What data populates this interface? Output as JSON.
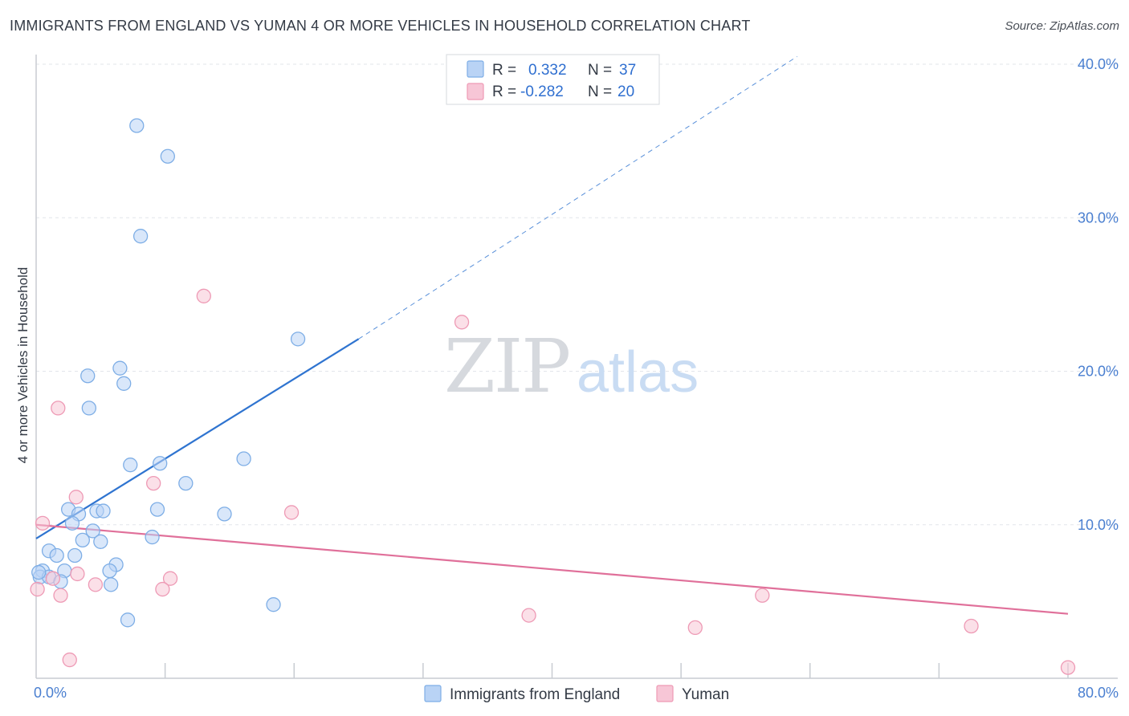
{
  "title": "IMMIGRANTS FROM ENGLAND VS YUMAN 4 OR MORE VEHICLES IN HOUSEHOLD CORRELATION CHART",
  "source": "Source: ZipAtlas.com",
  "watermark": {
    "zip": "ZIP",
    "atlas": "atlas"
  },
  "colors": {
    "blue_fill": "#b9d3f5",
    "blue_stroke": "#7eaee6",
    "blue_line": "#2f74d0",
    "pink_fill": "#f7c6d6",
    "pink_stroke": "#ee9ab5",
    "pink_line": "#e0709a",
    "grid": "#e2e5ea",
    "axis": "#c8ccd2",
    "tick_text": "#4a7fd0"
  },
  "legend": {
    "rows": [
      {
        "r_label": "R =",
        "r_value": "0.332",
        "n_label": "N =",
        "n_value": "37",
        "series": "blue"
      },
      {
        "r_label": "R =",
        "r_value": "-0.282",
        "n_label": "N =",
        "n_value": "20",
        "series": "pink"
      }
    ]
  },
  "chart_data": {
    "type": "scatter",
    "title": "IMMIGRANTS FROM ENGLAND VS YUMAN 4 OR MORE VEHICLES IN HOUSEHOLD CORRELATION CHART",
    "xlabel": "",
    "ylabel": "4 or more Vehicles in Household",
    "xlim": [
      0,
      80
    ],
    "ylim": [
      0,
      40
    ],
    "x_tick_labels": [
      "0.0%",
      "80.0%"
    ],
    "y_ticks": [
      10,
      20,
      30,
      40
    ],
    "y_tick_labels": [
      "10.0%",
      "20.0%",
      "30.0%",
      "40.0%"
    ],
    "grid": true,
    "legend_position": "bottom-center",
    "series": [
      {
        "name": "Immigrants from England",
        "color": "blue",
        "r": 0.332,
        "n": 37,
        "trend": {
          "x0": 0,
          "y0": 9.1,
          "x1": 25,
          "y1": 22.1,
          "dash_to_x": 59,
          "dash_to_y": 40.5
        },
        "points": [
          [
            7.8,
            36.0
          ],
          [
            10.2,
            34.0
          ],
          [
            8.1,
            28.8
          ],
          [
            20.3,
            22.1
          ],
          [
            4.0,
            19.7
          ],
          [
            6.5,
            20.2
          ],
          [
            6.8,
            19.2
          ],
          [
            4.1,
            17.6
          ],
          [
            7.3,
            13.9
          ],
          [
            9.6,
            14.0
          ],
          [
            16.1,
            14.3
          ],
          [
            11.6,
            12.7
          ],
          [
            2.5,
            11.0
          ],
          [
            4.7,
            10.9
          ],
          [
            5.2,
            10.9
          ],
          [
            9.4,
            11.0
          ],
          [
            14.6,
            10.7
          ],
          [
            3.3,
            10.7
          ],
          [
            2.8,
            10.1
          ],
          [
            4.4,
            9.6
          ],
          [
            9.0,
            9.2
          ],
          [
            3.6,
            9.0
          ],
          [
            5.0,
            8.9
          ],
          [
            1.0,
            8.3
          ],
          [
            1.6,
            8.0
          ],
          [
            3.0,
            8.0
          ],
          [
            6.2,
            7.4
          ],
          [
            0.5,
            7.0
          ],
          [
            2.2,
            7.0
          ],
          [
            5.7,
            7.0
          ],
          [
            0.3,
            6.6
          ],
          [
            1.0,
            6.6
          ],
          [
            1.9,
            6.3
          ],
          [
            5.8,
            6.1
          ],
          [
            18.4,
            4.8
          ],
          [
            7.1,
            3.8
          ],
          [
            0.2,
            6.9
          ]
        ]
      },
      {
        "name": "Yuman",
        "color": "pink",
        "r": -0.282,
        "n": 20,
        "trend": {
          "x0": 0,
          "y0": 10.0,
          "x1": 80,
          "y1": 4.2
        },
        "points": [
          [
            13.0,
            24.9
          ],
          [
            33.0,
            23.2
          ],
          [
            1.7,
            17.6
          ],
          [
            3.1,
            11.8
          ],
          [
            9.1,
            12.7
          ],
          [
            19.8,
            10.8
          ],
          [
            0.5,
            10.1
          ],
          [
            3.2,
            6.8
          ],
          [
            10.4,
            6.5
          ],
          [
            1.3,
            6.5
          ],
          [
            4.6,
            6.1
          ],
          [
            9.8,
            5.8
          ],
          [
            0.1,
            5.8
          ],
          [
            1.9,
            5.4
          ],
          [
            56.3,
            5.4
          ],
          [
            38.2,
            4.1
          ],
          [
            51.1,
            3.3
          ],
          [
            72.5,
            3.4
          ],
          [
            2.6,
            1.2
          ],
          [
            80.0,
            0.7
          ]
        ]
      }
    ]
  }
}
